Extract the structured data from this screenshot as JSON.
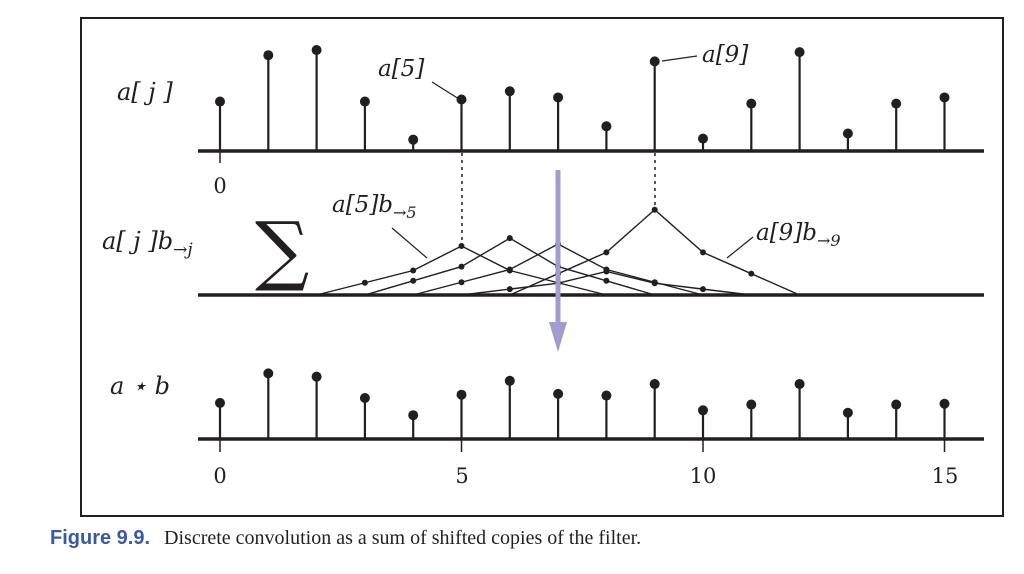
{
  "rows": {
    "input": {
      "label": "a[ j ]"
    },
    "shifted": {
      "label": "a[ j ]b",
      "label_sub": "→j"
    },
    "output": {
      "label": "a ⋆ b"
    }
  },
  "annotations": {
    "a5": "a[5]",
    "a9": "a[9]",
    "a5b": "a[5]b",
    "a5b_sub": "→5",
    "a9b": "a[9]b",
    "a9b_sub": "→9"
  },
  "sum_symbol": "∑",
  "ticks": {
    "top_zero": "0",
    "bottom": [
      "0",
      "5",
      "10",
      "15"
    ]
  },
  "sequences": {
    "a": [
      0.48,
      0.93,
      0.98,
      0.48,
      0.11,
      0.5,
      0.58,
      0.52,
      0.24,
      0.87,
      0.12,
      0.46,
      0.96,
      0.17,
      0.46,
      0.52
    ],
    "a_star_b": [
      0.44,
      0.8,
      0.76,
      0.5,
      0.29,
      0.54,
      0.71,
      0.55,
      0.53,
      0.67,
      0.35,
      0.42,
      0.67,
      0.32,
      0.42,
      0.43
    ]
  },
  "filter": {
    "kernel": [
      0.25,
      0.5,
      1,
      0.5,
      0.25
    ],
    "shifts": [
      5,
      6,
      7,
      8,
      9
    ]
  },
  "colors": {
    "ink": "#231f20",
    "arrow": "#a09dd0",
    "caption_label": "#3b58a3"
  },
  "caption": {
    "number": "Figure 9.9.",
    "text": "Discrete convolution as a sum of shifted copies of the filter."
  }
}
